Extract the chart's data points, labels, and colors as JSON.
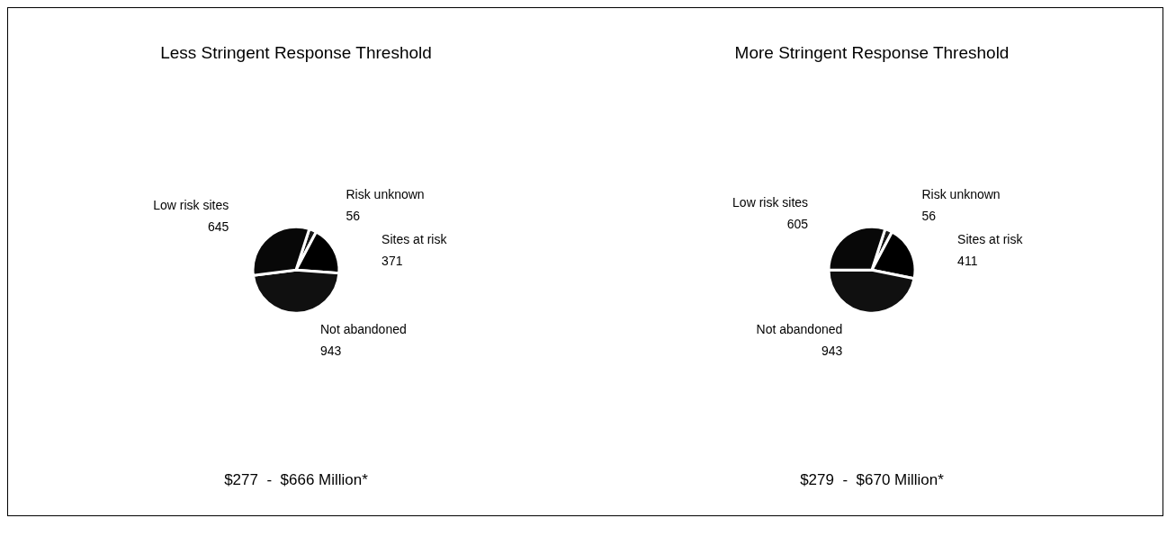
{
  "chart_data": [
    {
      "type": "pie",
      "title": "Less Stringent Response Threshold",
      "categories": [
        "Risk unknown",
        "Sites at risk",
        "Not abandoned",
        "Low risk sites"
      ],
      "values": [
        56,
        371,
        943,
        645
      ],
      "colors": [
        "#1a1a1a",
        "#000000",
        "#101010",
        "#080808"
      ],
      "data_labels": true,
      "annotations": [
        "$277  -  $666 Million*"
      ]
    },
    {
      "type": "pie",
      "title": "More Stringent Response Threshold",
      "categories": [
        "Risk unknown",
        "Sites at risk",
        "Not abandoned",
        "Low risk sites"
      ],
      "values": [
        56,
        411,
        943,
        605
      ],
      "colors": [
        "#1a1a1a",
        "#000000",
        "#101010",
        "#080808"
      ],
      "data_labels": true,
      "annotations": [
        "$279  -  $670 Million*"
      ]
    }
  ]
}
